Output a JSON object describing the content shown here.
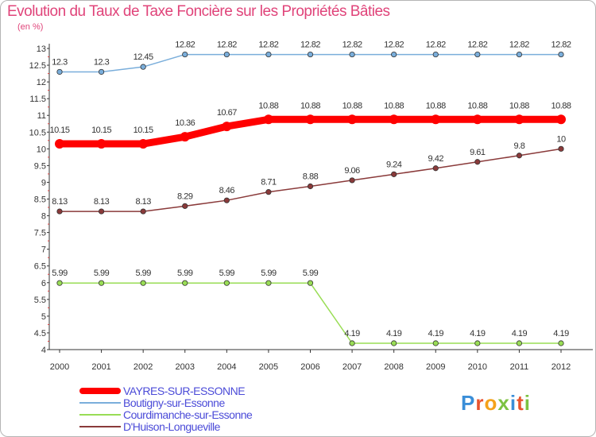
{
  "title": "Evolution du Taux de Taxe Foncière sur les Propriétés Bâties",
  "unit_label": "(en %)",
  "logo_text": "Proxiti",
  "chart_data": {
    "type": "line",
    "title": "Evolution du Taux de Taxe Foncière sur les Propriétés Bâties",
    "ylabel": "(en %)",
    "xlabel": "",
    "x": [
      "2000",
      "2001",
      "2002",
      "2003",
      "2004",
      "2005",
      "2006",
      "2007",
      "2008",
      "2009",
      "2010",
      "2011",
      "2012"
    ],
    "ylim": [
      4,
      13
    ],
    "y_ticks": [
      "4",
      "4.5",
      "5",
      "5.5",
      "6",
      "6.5",
      "7",
      "7.5",
      "8",
      "8.5",
      "9",
      "9.5",
      "10",
      "10.5",
      "11",
      "11.5",
      "12",
      "12.5",
      "13"
    ],
    "grid": false,
    "legend_position": "bottom-left",
    "series": [
      {
        "name": "VAYRES-SUR-ESSONNE",
        "color": "#ff0000",
        "labels": [
          "10.15",
          "10.15",
          "10.15",
          "10.36",
          "10.67",
          "10.88",
          "10.88",
          "10.88",
          "10.88",
          "10.88",
          "10.88",
          "10.88",
          "10.88"
        ],
        "values": [
          10.15,
          10.15,
          10.15,
          10.36,
          10.67,
          10.88,
          10.88,
          10.88,
          10.88,
          10.88,
          10.88,
          10.88,
          10.88
        ]
      },
      {
        "name": "Boutigny-sur-Essonne",
        "color": "#7aaedb",
        "labels": [
          "12.3",
          "12.3",
          "12.45",
          "12.82",
          "12.82",
          "12.82",
          "12.82",
          "12.82",
          "12.82",
          "12.82",
          "12.82",
          "12.82",
          "12.82"
        ],
        "values": [
          12.3,
          12.3,
          12.45,
          12.82,
          12.82,
          12.82,
          12.82,
          12.82,
          12.82,
          12.82,
          12.82,
          12.82,
          12.82
        ]
      },
      {
        "name": "Courdimanche-sur-Essonne",
        "color": "#99dd55",
        "labels": [
          "5.99",
          "5.99",
          "5.99",
          "5.99",
          "5.99",
          "5.99",
          "5.99",
          "4.19",
          "4.19",
          "4.19",
          "4.19",
          "4.19",
          "4.19"
        ],
        "values": [
          5.99,
          5.99,
          5.99,
          5.99,
          5.99,
          5.99,
          5.99,
          4.19,
          4.19,
          4.19,
          4.19,
          4.19,
          4.19
        ]
      },
      {
        "name": "D'Huison-Longueville",
        "color": "#8a3a3a",
        "labels": [
          "8.13",
          "8.13",
          "8.13",
          "8.29",
          "8.46",
          "8.71",
          "8.88",
          "9.06",
          "9.24",
          "9.42",
          "9.61",
          "9.8",
          "10"
        ],
        "values": [
          8.13,
          8.13,
          8.13,
          8.29,
          8.46,
          8.71,
          8.88,
          9.06,
          9.24,
          9.42,
          9.61,
          9.8,
          10
        ]
      }
    ]
  }
}
